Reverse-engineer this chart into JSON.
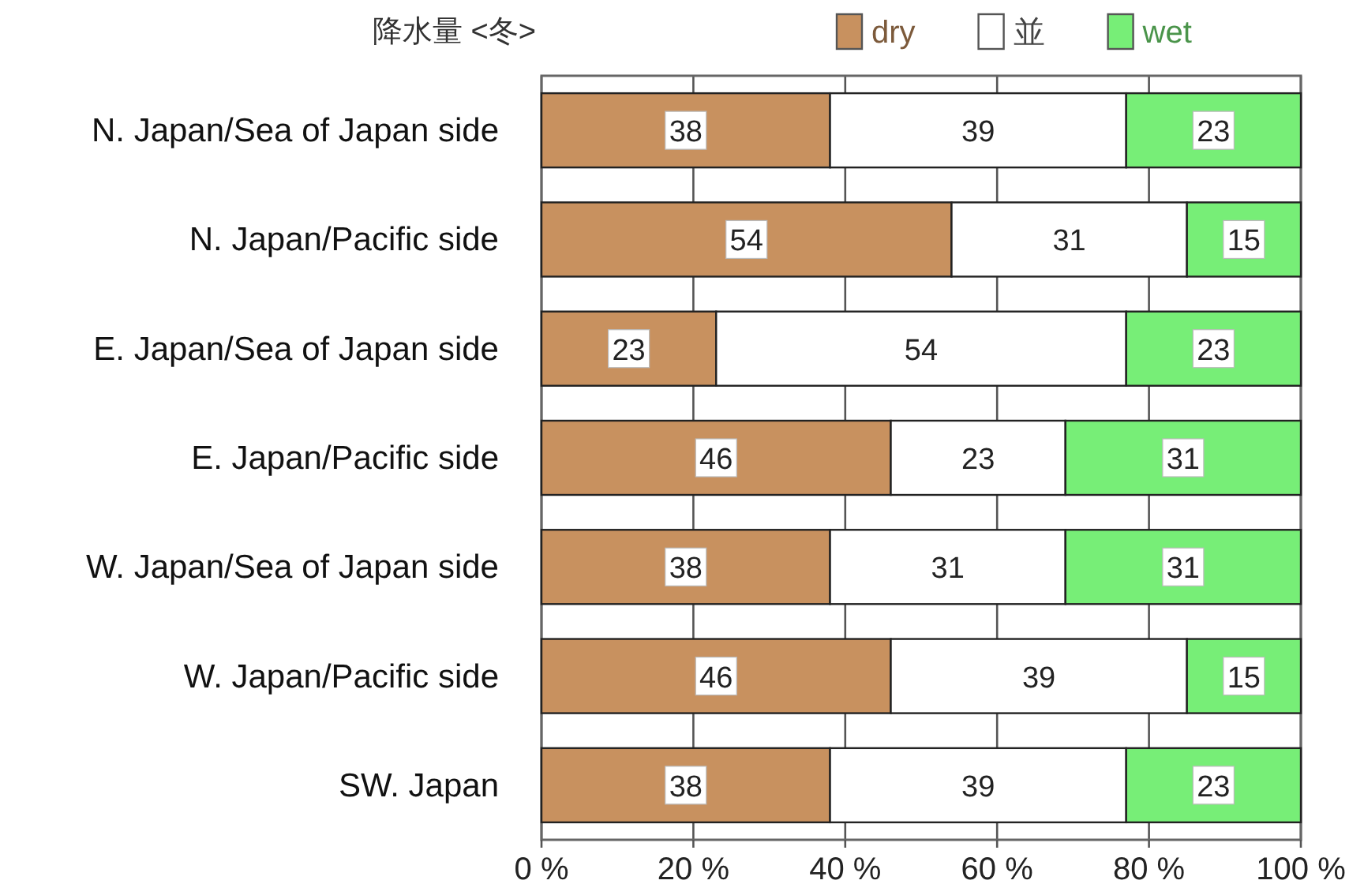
{
  "chart_data": {
    "type": "bar",
    "orientation": "horizontal",
    "stacked": true,
    "title": "降水量 <冬>",
    "categories": [
      "N. Japan/Sea of Japan side",
      "N. Japan/Pacific side",
      "E. Japan/Sea of Japan side",
      "E. Japan/Pacific side",
      "W. Japan/Sea of Japan side",
      "W. Japan/Pacific side",
      "SW. Japan"
    ],
    "series": [
      {
        "name": "dry",
        "color": "#c8915f",
        "values": [
          38,
          54,
          23,
          46,
          38,
          46,
          38
        ]
      },
      {
        "name": "並",
        "color": "#ffffff",
        "values": [
          39,
          31,
          54,
          23,
          31,
          39,
          39
        ]
      },
      {
        "name": "wet",
        "color": "#77ee77",
        "values": [
          23,
          15,
          23,
          31,
          31,
          15,
          23
        ]
      }
    ],
    "xlim": [
      0,
      100
    ],
    "xticks": [
      {
        "value": 0,
        "label": "0 %"
      },
      {
        "value": 20,
        "label": "20 %"
      },
      {
        "value": 40,
        "label": "40 %"
      },
      {
        "value": 60,
        "label": "60 %"
      },
      {
        "value": 80,
        "label": "80 %"
      },
      {
        "value": 100,
        "label": "100 %"
      }
    ],
    "grid": "x",
    "legend": "top right",
    "data_labels": true
  }
}
